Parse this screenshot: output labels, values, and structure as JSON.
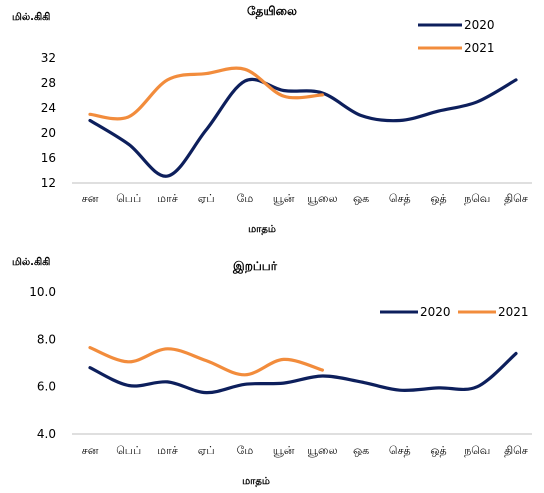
{
  "chart_data": [
    {
      "type": "line",
      "title": "தேயிலை",
      "ylabel": "மில்.கிகி",
      "xlabel": "மாதம்",
      "categories": [
        "சன",
        "பெப்",
        "மாச்",
        "ஏப்",
        "மே",
        "யூன்",
        "யூலை",
        "ஒக",
        "செத்",
        "ஒத்",
        "நவெ",
        "திசெ"
      ],
      "yticks": [
        "12",
        "16",
        "20",
        "24",
        "28",
        "32"
      ],
      "ylim": [
        12,
        32
      ],
      "legend_position": "top-right",
      "series": [
        {
          "name": "2020",
          "color": "#0d1f5c",
          "values": [
            22.0,
            18.2,
            13.1,
            20.5,
            28.3,
            26.8,
            26.4,
            22.8,
            22.0,
            23.5,
            25.0,
            28.5
          ]
        },
        {
          "name": "2021",
          "color": "#f28c3c",
          "values": [
            23.0,
            22.6,
            28.5,
            29.5,
            30.2,
            25.9,
            26.1,
            null,
            null,
            null,
            null,
            null
          ]
        }
      ]
    },
    {
      "type": "line",
      "title": "இறப்பர்",
      "ylabel": "மில்.கிகி",
      "xlabel": "மாதம்",
      "categories": [
        "சன",
        "பெப்",
        "மாச்",
        "ஏப்",
        "மே",
        "யூன்",
        "யூலை",
        "ஒக",
        "செத்",
        "ஒத்",
        "நவெ",
        "திசெ"
      ],
      "yticks": [
        "4.0",
        "6.0",
        "8.0",
        "10.0"
      ],
      "ylim": [
        4,
        10
      ],
      "legend_position": "top-right",
      "series": [
        {
          "name": "2020",
          "color": "#0d1f5c",
          "values": [
            6.8,
            6.05,
            6.2,
            5.75,
            6.1,
            6.15,
            6.45,
            6.2,
            5.85,
            5.95,
            6.0,
            7.4
          ]
        },
        {
          "name": "2021",
          "color": "#f28c3c",
          "values": [
            7.65,
            7.05,
            7.6,
            7.1,
            6.5,
            7.15,
            6.7,
            null,
            null,
            null,
            null,
            null
          ]
        }
      ]
    }
  ]
}
